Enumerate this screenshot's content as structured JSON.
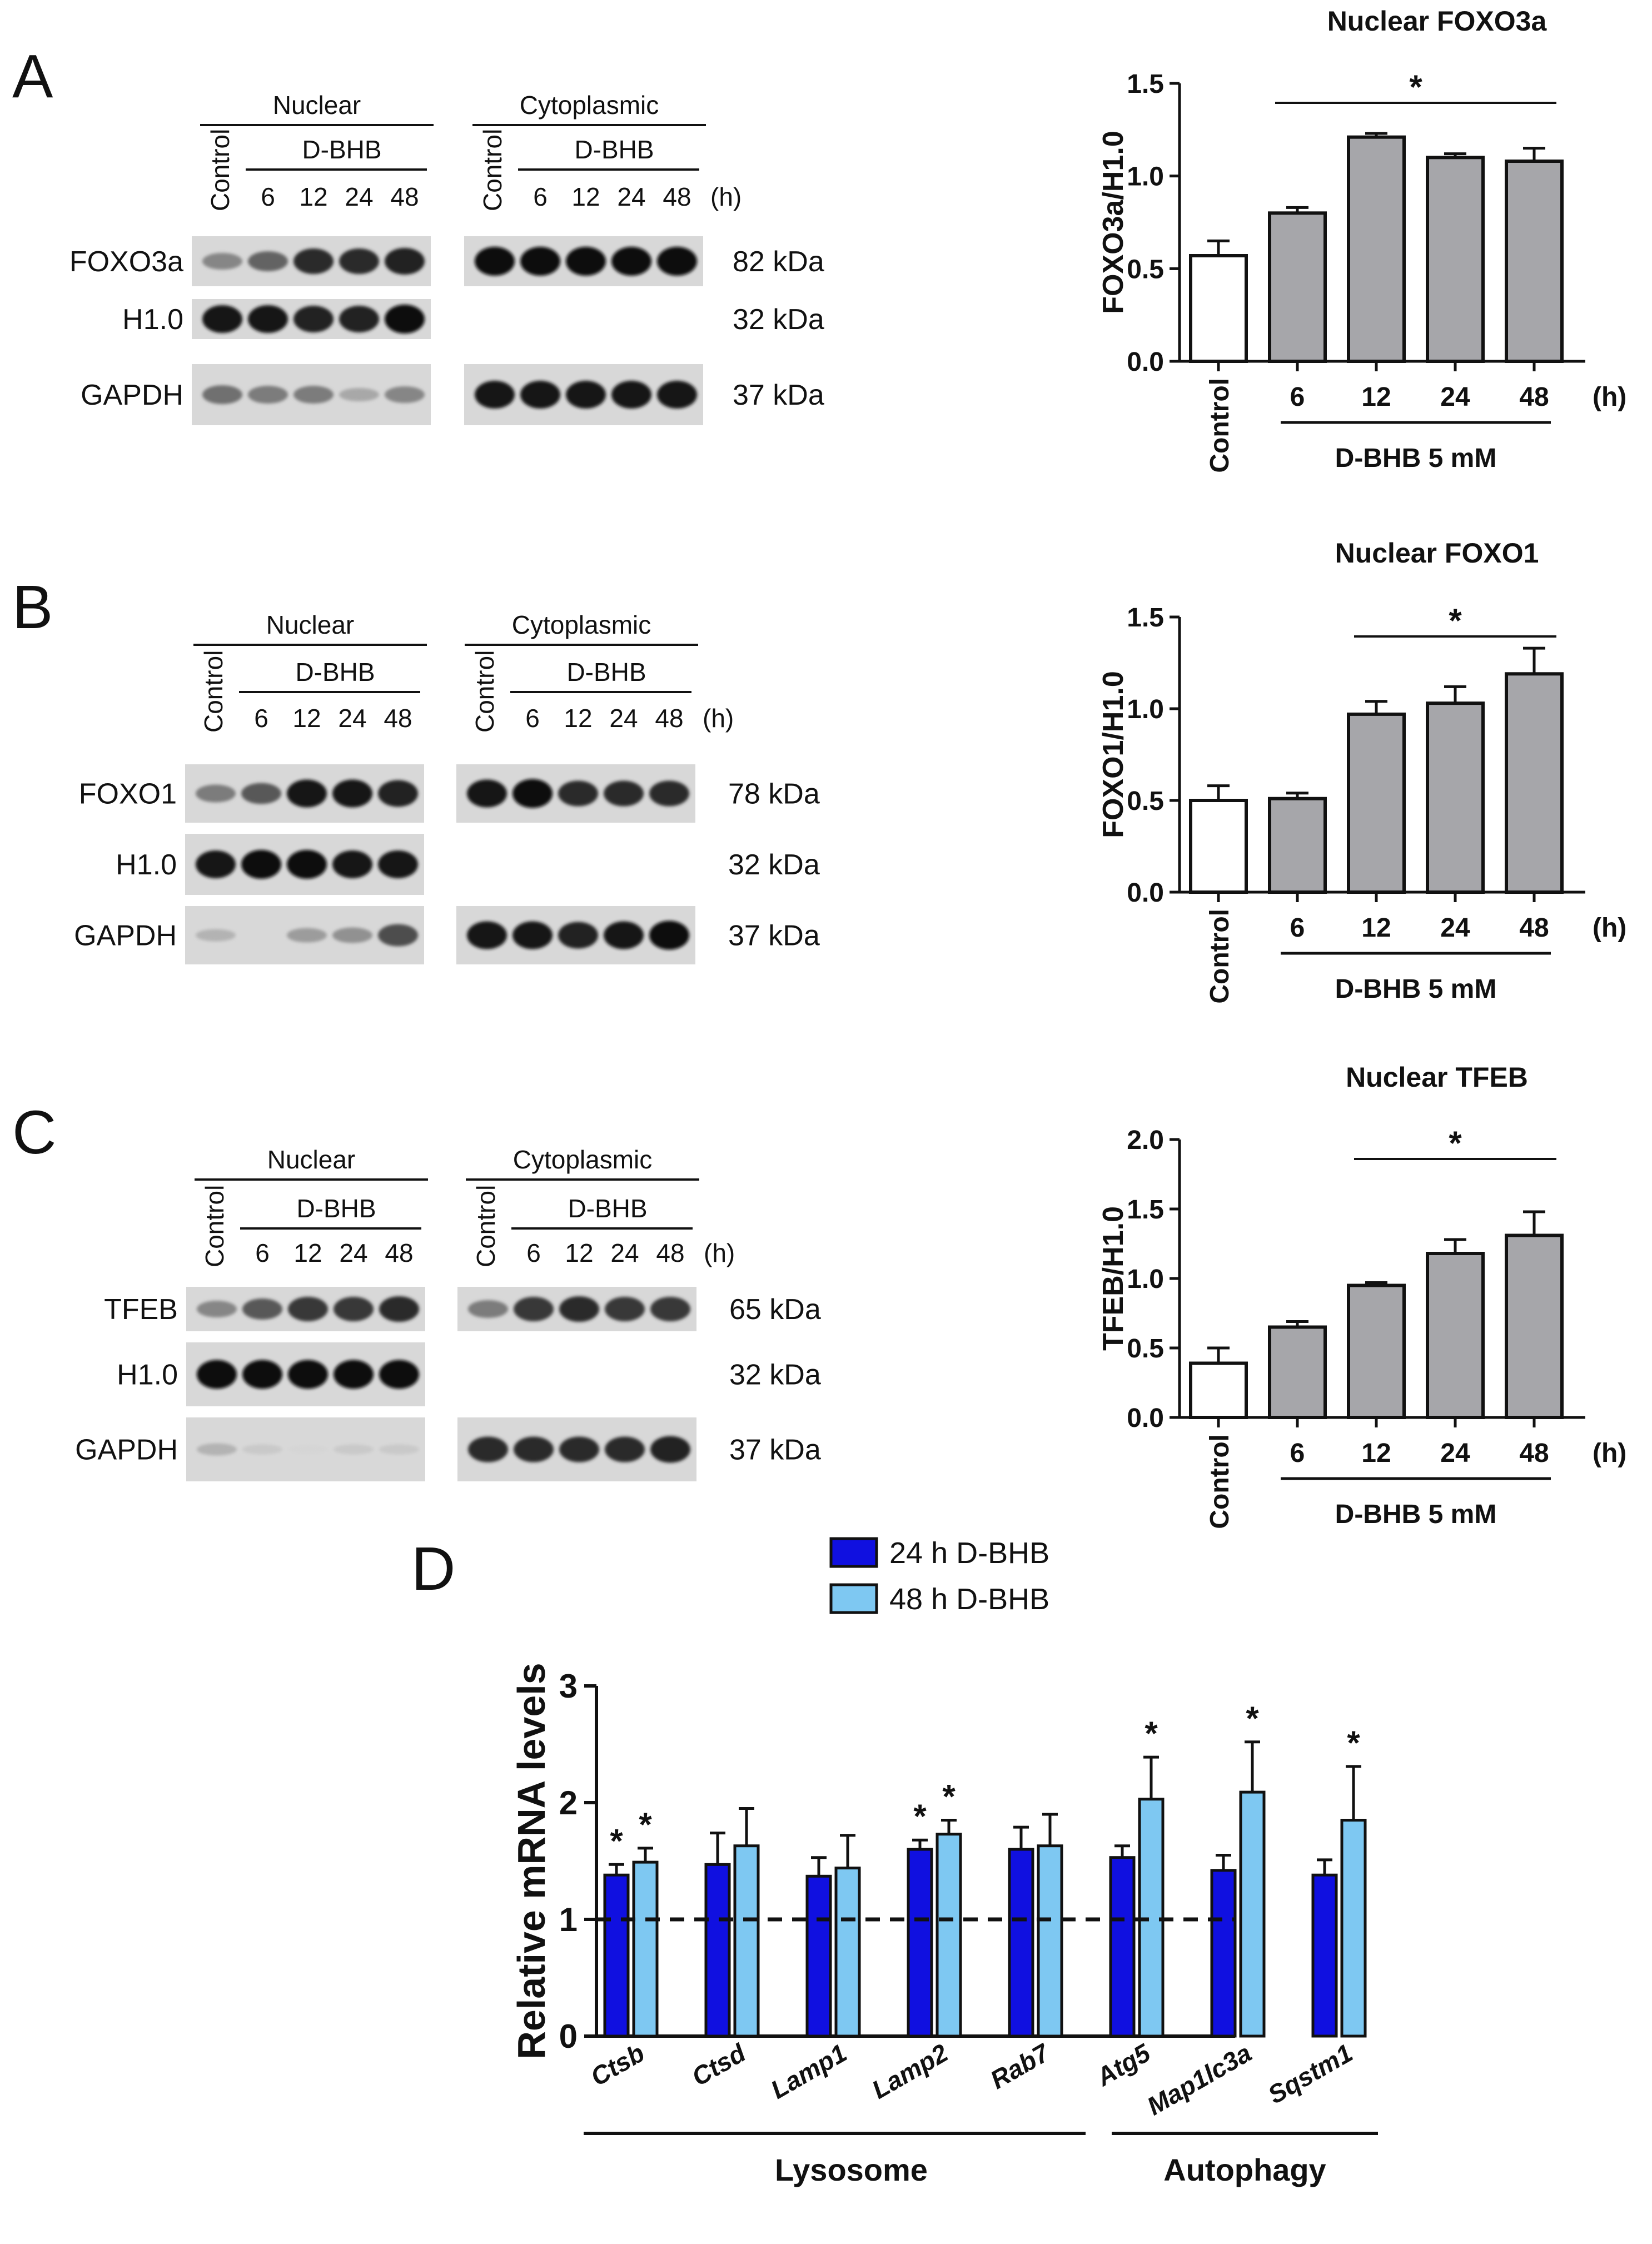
{
  "panels": {
    "A": {
      "letter": "A",
      "target": "FOXO3a",
      "target_kda": "82 kDa"
    },
    "B": {
      "letter": "B",
      "target": "FOXO1",
      "target_kda": "78 kDa"
    },
    "C": {
      "letter": "C",
      "target": "TFEB",
      "target_kda": "65 kDa"
    },
    "D": {
      "letter": "D"
    }
  },
  "blot": {
    "nuclear": "Nuclear",
    "cytoplasmic": "Cytoplasmic",
    "control": "Control",
    "treatment": "D-BHB",
    "times": [
      "6",
      "12",
      "24",
      "48"
    ],
    "hour_unit": "(h)",
    "loading1": "H1.0",
    "loading1_kda": "32 kDa",
    "loading2": "GAPDH",
    "loading2_kda": "37 kDa"
  },
  "shared": {
    "categories": [
      "Control",
      "6",
      "12",
      "24",
      "48"
    ],
    "hour_unit": "(h)",
    "treatment_label": "D-BHB 5 mM",
    "sig": "*"
  },
  "colors": {
    "open": "#ffffff",
    "gray": "#a6a6aa",
    "dark_blue": "#1010e0",
    "light_blue": "#7ec8f2",
    "axis": "#111111"
  },
  "chart_data": [
    {
      "type": "bar",
      "panel": "A",
      "title": "Nuclear FOXO3a",
      "ylabel": "FOXO3a/H1.0",
      "categories": [
        "Control",
        "6",
        "12",
        "24",
        "48"
      ],
      "values": [
        0.57,
        0.8,
        1.21,
        1.1,
        1.08
      ],
      "errors": [
        0.08,
        0.03,
        0.02,
        0.02,
        0.07
      ],
      "ylim": [
        0,
        1.5
      ],
      "yticks": [
        "0.0",
        "0.5",
        "1.0",
        "1.5"
      ],
      "significance": {
        "from": "6",
        "to": "48",
        "label": "*"
      },
      "xlabel": "D-BHB 5 mM"
    },
    {
      "type": "bar",
      "panel": "B",
      "title": "Nuclear FOXO1",
      "ylabel": "FOXO1/H1.0",
      "categories": [
        "Control",
        "6",
        "12",
        "24",
        "48"
      ],
      "values": [
        0.5,
        0.51,
        0.97,
        1.03,
        1.19
      ],
      "errors": [
        0.08,
        0.03,
        0.07,
        0.09,
        0.14
      ],
      "ylim": [
        0,
        1.5
      ],
      "yticks": [
        "0.0",
        "0.5",
        "1.0",
        "1.5"
      ],
      "significance": {
        "from": "12",
        "to": "48",
        "label": "*"
      },
      "xlabel": "D-BHB 5 mM"
    },
    {
      "type": "bar",
      "panel": "C",
      "title": "Nuclear TFEB",
      "ylabel": "TFEB/H1.0",
      "categories": [
        "Control",
        "6",
        "12",
        "24",
        "48"
      ],
      "values": [
        0.39,
        0.65,
        0.95,
        1.18,
        1.31
      ],
      "errors": [
        0.11,
        0.04,
        0.02,
        0.1,
        0.17
      ],
      "ylim": [
        0,
        2.0
      ],
      "yticks": [
        "0.0",
        "0.5",
        "1.0",
        "1.5",
        "2.0"
      ],
      "significance": {
        "from": "12",
        "to": "48",
        "label": "*"
      },
      "xlabel": "D-BHB 5 mM"
    },
    {
      "type": "bar",
      "panel": "D",
      "ylabel": "Relative mRNA levels",
      "categories": [
        "Ctsb",
        "Ctsd",
        "Lamp1",
        "Lamp2",
        "Rab7",
        "Atg5",
        "Map1lc3a",
        "Sqstm1"
      ],
      "series": [
        {
          "name": "24 h D-BHB",
          "values": [
            1.38,
            1.47,
            1.37,
            1.6,
            1.6,
            1.53,
            1.42,
            1.38
          ],
          "errors": [
            0.09,
            0.27,
            0.16,
            0.08,
            0.19,
            0.1,
            0.13,
            0.13
          ],
          "sig": [
            true,
            false,
            false,
            true,
            false,
            false,
            false,
            false
          ]
        },
        {
          "name": "48 h D-BHB",
          "values": [
            1.49,
            1.63,
            1.44,
            1.73,
            1.63,
            2.03,
            2.09,
            1.85
          ],
          "errors": [
            0.12,
            0.32,
            0.28,
            0.12,
            0.27,
            0.36,
            0.43,
            0.46
          ],
          "sig": [
            true,
            false,
            false,
            true,
            false,
            true,
            true,
            true
          ]
        }
      ],
      "ylim": [
        0,
        3
      ],
      "yticks": [
        "0",
        "1",
        "2",
        "3"
      ],
      "reference_line": 1,
      "groups": [
        {
          "label": "Lysosome",
          "members": [
            "Ctsb",
            "Ctsd",
            "Lamp1",
            "Lamp2",
            "Rab7"
          ]
        },
        {
          "label": "Autophagy",
          "members": [
            "Atg5",
            "Map1lc3a",
            "Sqstm1"
          ]
        }
      ]
    }
  ]
}
